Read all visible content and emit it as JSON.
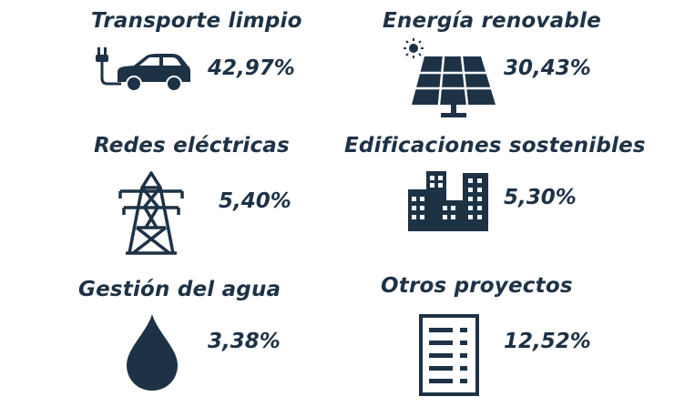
{
  "chart_data": {
    "type": "infographic",
    "categories": [
      "Transporte limpio",
      "Energía renovable",
      "Redes eléctricas",
      "Edificaciones sostenibles",
      "Gestión del agua",
      "Otros proyectos"
    ],
    "values_text": [
      "42,97%",
      "30,43%",
      "5,40%",
      "5,30%",
      "3,38%",
      "12,52%"
    ],
    "values": [
      42.97,
      30.43,
      5.4,
      5.3,
      3.38,
      12.52
    ],
    "items": [
      {
        "label": "Transporte limpio",
        "value": "42,97%",
        "icon": "electric-car-icon"
      },
      {
        "label": "Energía renovable",
        "value": "30,43%",
        "icon": "solar-panel-icon"
      },
      {
        "label": "Redes eléctricas",
        "value": "5,40%",
        "icon": "power-tower-icon"
      },
      {
        "label": "Edificaciones sostenibles",
        "value": "5,30%",
        "icon": "buildings-icon"
      },
      {
        "label": "Gestión del agua",
        "value": "3,38%",
        "icon": "water-drop-icon"
      },
      {
        "label": "Otros proyectos",
        "value": "12,52%",
        "icon": "list-document-icon"
      }
    ],
    "colors": {
      "main": "#1e3246",
      "background": "#ffffff"
    }
  }
}
